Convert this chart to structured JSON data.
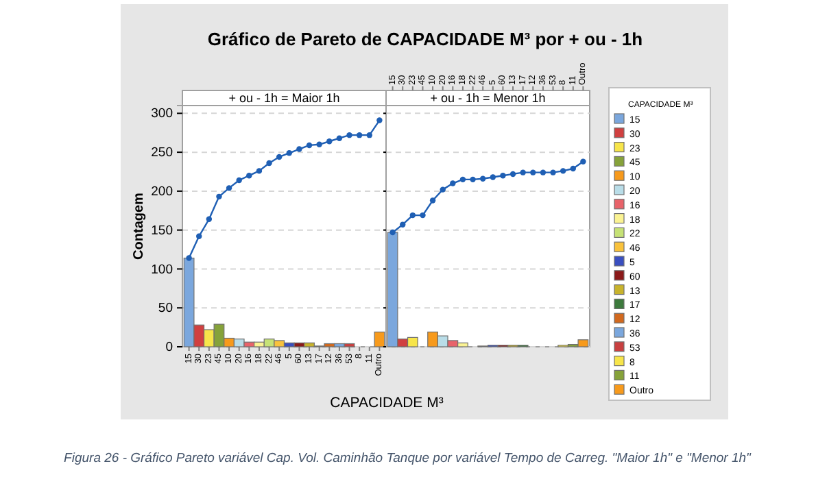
{
  "chart_data": [
    {
      "type": "bar",
      "title": "Gráfico de Pareto de CAPACIDADE M³ por + ou - 1h",
      "subtitle": "+ ou - 1h = Maior 1h",
      "xlabel": "CAPACIDADE M³",
      "ylabel": "Contagem",
      "legend_title": "CAPACIDADE M³",
      "grid": "y",
      "marker": "circle",
      "line_style": "solid",
      "ylim": [
        0,
        310
      ],
      "yticks": [
        0,
        50,
        100,
        150,
        200,
        250,
        300
      ],
      "annotations": [
        "Figura 26 - Gráfico Pareto variável Cap. Vol. Caminhão Tanque por variável Tempo de Carreg. \"Maior 1h\" e \"Menor 1h\""
      ],
      "categories": [
        "15",
        "30",
        "23",
        "45",
        "10",
        "20",
        "16",
        "18",
        "22",
        "46",
        "5",
        "60",
        "13",
        "17",
        "12",
        "36",
        "53",
        "8",
        "11",
        "Outro"
      ],
      "series": [
        {
          "colors": [
            "#7ba7dd",
            "#d04040",
            "#f7e54a",
            "#86a23a",
            "#f79a1c",
            "#b9dde8",
            "#e8636a",
            "#fbf393",
            "#c6e276",
            "#f9c23c",
            "#3a4fc0",
            "#8b1a1a",
            "#c8b32c",
            "#3d7a3d",
            "#d2691e",
            "#7ba7dd",
            "#c84040",
            "#f7e54a",
            "#86a23a",
            "#f79a1c"
          ],
          "values": [
            114,
            28,
            22,
            29,
            11,
            10,
            6,
            6,
            10,
            8,
            5,
            5,
            5,
            1,
            4,
            4,
            4,
            0,
            0,
            19
          ]
        },
        {
          "type": "line",
          "color": "#1f5fb4",
          "values": [
            114,
            142,
            164,
            193,
            204,
            214,
            220,
            226,
            236,
            244,
            249,
            254,
            259,
            260,
            264,
            268,
            272,
            272,
            272,
            291
          ]
        }
      ]
    },
    {
      "type": "bar",
      "subtitle": "+ ou - 1h = Menor 1h",
      "tick_labels": "x",
      "grid": "y",
      "marker": "circle",
      "line_style": "solid",
      "ylim": [
        0,
        310
      ],
      "yticks": [
        0,
        50,
        100,
        150,
        200,
        250,
        300
      ],
      "categories": [
        "15",
        "30",
        "23",
        "45",
        "10",
        "20",
        "16",
        "18",
        "22",
        "46",
        "5",
        "60",
        "13",
        "17",
        "12",
        "36",
        "53",
        "8",
        "11",
        "Outro"
      ],
      "series": [
        {
          "colors": [
            "#7ba7dd",
            "#d04040",
            "#f7e54a",
            "#86a23a",
            "#f79a1c",
            "#b9dde8",
            "#e8636a",
            "#fbf393",
            "#c6e276",
            "#f9c23c",
            "#3a4fc0",
            "#8b1a1a",
            "#c8b32c",
            "#3d7a3d",
            "#d2691e",
            "#7ba7dd",
            "#c84040",
            "#f7e54a",
            "#86a23a",
            "#f79a1c"
          ],
          "values": [
            147,
            10,
            12,
            0,
            19,
            14,
            8,
            5,
            0,
            1,
            2,
            2,
            2,
            2,
            0,
            0,
            0,
            2,
            3,
            9
          ]
        },
        {
          "type": "line",
          "color": "#1f5fb4",
          "values": [
            147,
            157,
            169,
            169,
            188,
            202,
            210,
            215,
            215,
            216,
            218,
            220,
            222,
            224,
            224,
            224,
            224,
            226,
            229,
            238
          ]
        }
      ]
    }
  ]
}
